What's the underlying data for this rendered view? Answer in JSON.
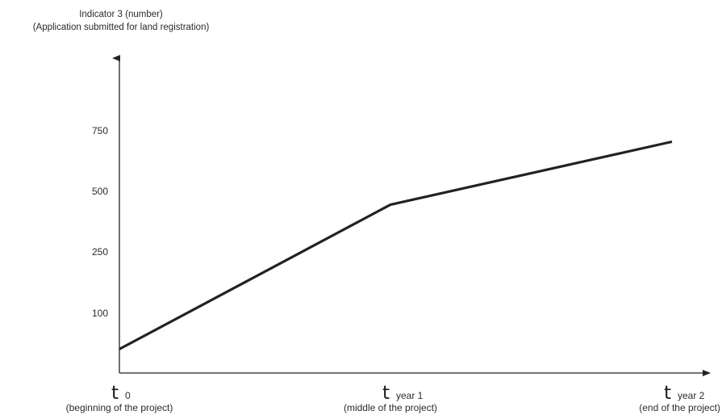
{
  "chart_data": {
    "type": "line",
    "ylabel_line1": "Indicator 3  (number)",
    "ylabel_line2": "(Application submitted for land registration)",
    "y_ticks": [
      {
        "label": "750",
        "value": 750
      },
      {
        "label": "500",
        "value": 500
      },
      {
        "label": "250",
        "value": 250
      },
      {
        "label": "100",
        "value": 100
      }
    ],
    "x_ticks": [
      {
        "symbol": "t",
        "sub": "0",
        "desc": "(beginning of the project)",
        "value": 0
      },
      {
        "symbol": "t",
        "sub": "year 1",
        "desc": "(middle of the project)",
        "value": 1
      },
      {
        "symbol": "t",
        "sub": "year 2",
        "desc": "(end of the project)",
        "value": 2
      }
    ],
    "series": [
      {
        "x": [
          0,
          1,
          2
        ],
        "y": [
          40,
          445,
          705
        ]
      }
    ],
    "colors": {
      "line": "#222222",
      "axis": "#222222"
    },
    "grid": false
  }
}
